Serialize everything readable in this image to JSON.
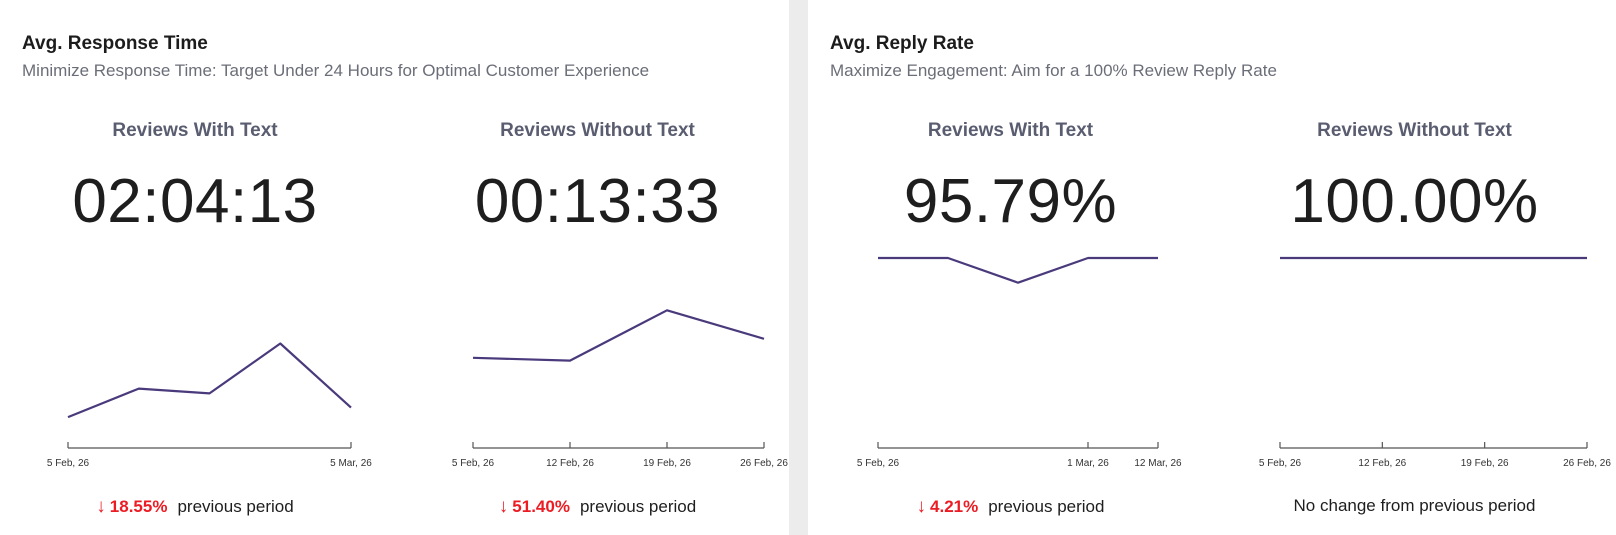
{
  "cards": [
    {
      "title": "Avg. Response Time",
      "subtitle": "Minimize Response Time: Target Under 24 Hours for Optimal Customer Experience",
      "metrics": [
        {
          "title": "Reviews With Text",
          "value": "02:04:13",
          "change": {
            "direction": "down",
            "arrow": "↓",
            "percent": "18.55%",
            "label": "previous period"
          },
          "no_change_text": "",
          "chart_data": {
            "type": "line",
            "x_ticks": [
              "5 Feb, 26",
              "5 Mar, 26"
            ],
            "y_unit": "hours",
            "points": [
              1.3,
              2.5,
              2.3,
              4.4,
              1.7
            ],
            "ylim": [
              0,
              8
            ],
            "color": "#4a3a7c"
          }
        },
        {
          "title": "Reviews Without Text",
          "value": "00:13:33",
          "change": {
            "direction": "down",
            "arrow": "↓",
            "percent": "51.40%",
            "label": "previous period"
          },
          "no_change_text": "",
          "chart_data": {
            "type": "line",
            "x_ticks": [
              "5 Feb, 26",
              "12 Feb, 26",
              "19 Feb, 26",
              "26 Feb, 26"
            ],
            "y_unit": "hours",
            "points": [
              0.95,
              0.92,
              1.45,
              1.15
            ],
            "ylim": [
              0,
              2
            ],
            "color": "#4a3a7c"
          }
        }
      ]
    },
    {
      "title": "Avg. Reply Rate",
      "subtitle": "Maximize Engagement: Aim for a 100% Review Reply Rate",
      "metrics": [
        {
          "title": "Reviews With Text",
          "value": "95.79%",
          "change": {
            "direction": "down",
            "arrow": "↓",
            "percent": "4.21%",
            "label": "previous period"
          },
          "no_change_text": "",
          "chart_data": {
            "type": "line",
            "x_ticks": [
              "5 Feb, 26",
              "1 Mar, 26",
              "12 Mar, 26"
            ],
            "y_unit": "percent",
            "points": [
              100,
              100,
              93.5,
              100,
              100
            ],
            "ylim": [
              50,
              100
            ],
            "color": "#4a3a7c"
          }
        },
        {
          "title": "Reviews Without Text",
          "value": "100.00%",
          "change": null,
          "no_change_text": "No change from previous period",
          "chart_data": {
            "type": "line",
            "x_ticks": [
              "5 Feb, 26",
              "12 Feb, 26",
              "19 Feb, 26",
              "26 Feb, 26"
            ],
            "y_unit": "percent",
            "points": [
              100,
              100,
              100,
              100
            ],
            "ylim": [
              50,
              100
            ],
            "color": "#4a3a7c"
          }
        }
      ]
    }
  ]
}
